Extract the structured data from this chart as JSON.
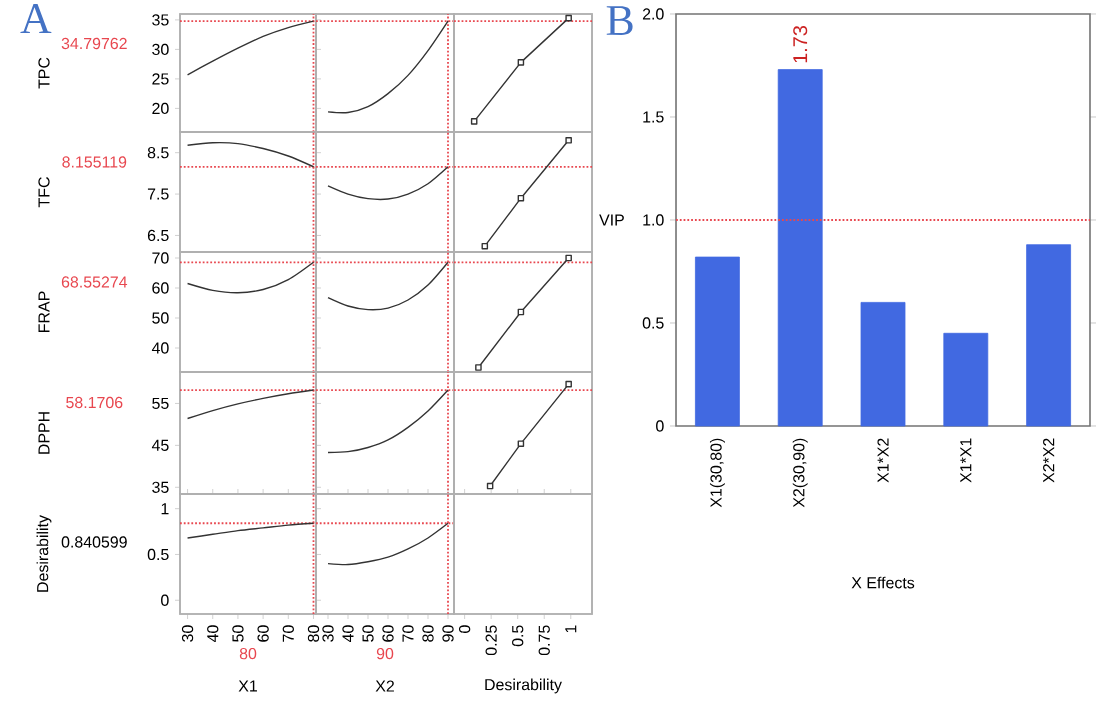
{
  "chart_data": [
    {
      "type": "line",
      "title": "A",
      "ylabel": "TPC",
      "x": [
        30,
        40,
        50,
        60,
        70,
        80
      ],
      "xlim": [
        27,
        81
      ],
      "ylim": [
        16,
        36
      ],
      "yticks": [
        20,
        25,
        30,
        35
      ],
      "tick_labels": "y",
      "series": [
        {
          "color": "#333333",
          "values": [
            25.7,
            28,
            30.2,
            32.2,
            33.7,
            34.8
          ]
        }
      ],
      "ref_lines": [
        {
          "axis": "y",
          "value": 34.79762,
          "label": "34.79762",
          "color": "#e8474f",
          "line_style": "dotted"
        },
        {
          "axis": "x",
          "value": 80,
          "color": "#e8474f",
          "line_style": "dotted"
        }
      ]
    },
    {
      "type": "line",
      "x": [
        30,
        40,
        50,
        60,
        70,
        80,
        90
      ],
      "xlim": [
        24,
        93
      ],
      "ylim": [
        16,
        36
      ],
      "tick_labels": false,
      "series": [
        {
          "color": "#333333",
          "values": [
            19.4,
            19.3,
            20.3,
            22.5,
            25.6,
            29.8,
            34.8
          ]
        }
      ],
      "ref_lines": [
        {
          "axis": "y",
          "value": 34.79762,
          "color": "#e8474f",
          "line_style": "dotted"
        },
        {
          "axis": "x",
          "value": 90,
          "color": "#e8474f",
          "line_style": "dotted"
        }
      ]
    },
    {
      "type": "line",
      "x": [
        0.09,
        0.53,
        0.98
      ],
      "xlim": [
        -0.1,
        1.2
      ],
      "ylim": [
        16,
        36
      ],
      "tick_labels": false,
      "marker": "square",
      "series": [
        {
          "color": "#333333",
          "values": [
            17.8,
            27.8,
            35.3
          ]
        }
      ],
      "ref_lines": [
        {
          "axis": "y",
          "value": 34.79762,
          "color": "#e8474f",
          "line_style": "dotted"
        }
      ]
    },
    {
      "type": "line",
      "ylabel": "TFC",
      "x": [
        30,
        40,
        50,
        60,
        70,
        80
      ],
      "xlim": [
        27,
        81
      ],
      "ylim": [
        6.1,
        9.0
      ],
      "yticks": [
        6.5,
        7.5,
        8.5
      ],
      "tick_labels": "y",
      "series": [
        {
          "color": "#333333",
          "values": [
            8.68,
            8.74,
            8.72,
            8.6,
            8.42,
            8.16
          ]
        }
      ],
      "ref_lines": [
        {
          "axis": "y",
          "value": 8.155119,
          "label": "8.155119",
          "color": "#e8474f",
          "line_style": "dotted"
        },
        {
          "axis": "x",
          "value": 80,
          "color": "#e8474f",
          "line_style": "dotted"
        }
      ]
    },
    {
      "type": "line",
      "x": [
        30,
        40,
        50,
        60,
        70,
        80,
        90
      ],
      "xlim": [
        24,
        93
      ],
      "ylim": [
        6.1,
        9.0
      ],
      "tick_labels": false,
      "series": [
        {
          "color": "#333333",
          "values": [
            7.7,
            7.5,
            7.39,
            7.38,
            7.5,
            7.75,
            8.16
          ]
        }
      ],
      "ref_lines": [
        {
          "axis": "y",
          "value": 8.155119,
          "color": "#e8474f",
          "line_style": "dotted"
        },
        {
          "axis": "x",
          "value": 90,
          "color": "#e8474f",
          "line_style": "dotted"
        }
      ]
    },
    {
      "type": "line",
      "x": [
        0.19,
        0.53,
        0.98
      ],
      "xlim": [
        -0.1,
        1.2
      ],
      "ylim": [
        6.1,
        9.0
      ],
      "tick_labels": false,
      "marker": "square",
      "series": [
        {
          "color": "#333333",
          "values": [
            6.24,
            7.4,
            8.8
          ]
        }
      ],
      "ref_lines": [
        {
          "axis": "y",
          "value": 8.155119,
          "color": "#e8474f",
          "line_style": "dotted"
        }
      ]
    },
    {
      "type": "line",
      "ylabel": "FRAP",
      "x": [
        30,
        40,
        50,
        60,
        70,
        80
      ],
      "xlim": [
        27,
        81
      ],
      "ylim": [
        32,
        72
      ],
      "yticks": [
        40,
        50,
        60,
        70
      ],
      "tick_labels": "y",
      "series": [
        {
          "color": "#333333",
          "values": [
            61.5,
            59.2,
            58.4,
            59.5,
            62.8,
            68.6
          ]
        }
      ],
      "ref_lines": [
        {
          "axis": "y",
          "value": 68.55274,
          "label": "68.55274",
          "color": "#e8474f",
          "line_style": "dotted"
        },
        {
          "axis": "x",
          "value": 80,
          "color": "#e8474f",
          "line_style": "dotted"
        }
      ]
    },
    {
      "type": "line",
      "x": [
        30,
        40,
        50,
        60,
        70,
        80,
        90
      ],
      "xlim": [
        24,
        93
      ],
      "ylim": [
        32,
        72
      ],
      "tick_labels": false,
      "series": [
        {
          "color": "#333333",
          "values": [
            56.8,
            54,
            52.8,
            53.3,
            56,
            61,
            68.6
          ]
        }
      ],
      "ref_lines": [
        {
          "axis": "y",
          "value": 68.55274,
          "color": "#e8474f",
          "line_style": "dotted"
        },
        {
          "axis": "x",
          "value": 90,
          "color": "#e8474f",
          "line_style": "dotted"
        }
      ]
    },
    {
      "type": "line",
      "x": [
        0.13,
        0.53,
        0.98
      ],
      "xlim": [
        -0.1,
        1.2
      ],
      "ylim": [
        32,
        72
      ],
      "tick_labels": false,
      "marker": "square",
      "series": [
        {
          "color": "#333333",
          "values": [
            33.5,
            52,
            70
          ]
        }
      ],
      "ref_lines": [
        {
          "axis": "y",
          "value": 68.55274,
          "color": "#e8474f",
          "line_style": "dotted"
        }
      ]
    },
    {
      "type": "line",
      "ylabel": "DPPH",
      "x": [
        30,
        40,
        50,
        60,
        70,
        80
      ],
      "xlim": [
        27,
        81
      ],
      "ylim": [
        33.4,
        62.5
      ],
      "yticks": [
        35,
        45,
        55
      ],
      "tick_labels": "y",
      "series": [
        {
          "color": "#333333",
          "values": [
            51.4,
            53.3,
            54.9,
            56.2,
            57.3,
            58.2
          ]
        }
      ],
      "ref_lines": [
        {
          "axis": "y",
          "value": 58.1706,
          "label": "58.1706",
          "color": "#e8474f",
          "line_style": "dotted"
        },
        {
          "axis": "x",
          "value": 80,
          "color": "#e8474f",
          "line_style": "dotted"
        }
      ]
    },
    {
      "type": "line",
      "x": [
        30,
        40,
        50,
        60,
        70,
        80,
        90
      ],
      "xlim": [
        24,
        93
      ],
      "ylim": [
        33.4,
        62.5
      ],
      "tick_labels": false,
      "series": [
        {
          "color": "#333333",
          "values": [
            43.3,
            43.5,
            44.5,
            46.3,
            49.3,
            53.2,
            58.2
          ]
        }
      ],
      "ref_lines": [
        {
          "axis": "y",
          "value": 58.1706,
          "color": "#e8474f",
          "line_style": "dotted"
        },
        {
          "axis": "x",
          "value": 90,
          "color": "#e8474f",
          "line_style": "dotted"
        }
      ]
    },
    {
      "type": "line",
      "x": [
        0.24,
        0.53,
        0.98
      ],
      "xlim": [
        -0.1,
        1.2
      ],
      "ylim": [
        33.4,
        62.5
      ],
      "tick_labels": false,
      "marker": "square",
      "series": [
        {
          "color": "#333333",
          "values": [
            35.3,
            45.4,
            59.6
          ]
        }
      ],
      "ref_lines": [
        {
          "axis": "y",
          "value": 58.1706,
          "color": "#e8474f",
          "line_style": "dotted"
        }
      ]
    },
    {
      "type": "line",
      "ylabel": "Desirability",
      "xlabel": "X1",
      "annotations": [
        "0.840599"
      ],
      "x": [
        30,
        40,
        50,
        60,
        70,
        80
      ],
      "xlim": [
        27,
        81
      ],
      "ylim": [
        -0.15,
        1.16
      ],
      "xticks": [
        30,
        40,
        50,
        60,
        70,
        80
      ],
      "yticks": [
        0,
        0.5,
        1
      ],
      "series": [
        {
          "color": "#333333",
          "values": [
            0.68,
            0.72,
            0.76,
            0.79,
            0.82,
            0.84
          ]
        }
      ],
      "ref_lines": [
        {
          "axis": "y",
          "value": 0.840599,
          "color": "#e8474f",
          "line_style": "dotted"
        },
        {
          "axis": "x",
          "value": 80,
          "label": "80",
          "color": "#e8474f",
          "line_style": "dotted"
        }
      ]
    },
    {
      "type": "line",
      "xlabel": "X2",
      "x": [
        30,
        40,
        50,
        60,
        70,
        80,
        90
      ],
      "xlim": [
        24,
        93
      ],
      "ylim": [
        -0.15,
        1.16
      ],
      "xticks": [
        30,
        40,
        50,
        60,
        70,
        80,
        90
      ],
      "tick_labels": "x",
      "series": [
        {
          "color": "#333333",
          "values": [
            0.4,
            0.39,
            0.42,
            0.47,
            0.56,
            0.68,
            0.84
          ]
        }
      ],
      "ref_lines": [
        {
          "axis": "y",
          "value": 0.840599,
          "color": "#e8474f",
          "line_style": "dotted"
        },
        {
          "axis": "x",
          "value": 90,
          "label": "90",
          "color": "#e8474f",
          "line_style": "dotted"
        }
      ]
    },
    {
      "type": "line",
      "xlabel": "Desirability",
      "xlim": [
        -0.1,
        1.2
      ],
      "ylim": [
        -0.15,
        1.16
      ],
      "xticks": [
        0,
        0.25,
        0.5,
        0.75,
        1
      ],
      "tick_labels": "x"
    },
    {
      "type": "bar",
      "title": "B",
      "xlabel": "X Effects",
      "ylabel": "VIP",
      "categories": [
        "X1(30,80)",
        "X2(30,90)",
        "X1*X2",
        "X1*X1",
        "X2*X2"
      ],
      "values": [
        0.82,
        1.73,
        0.6,
        0.45,
        0.88
      ],
      "value_labels": [
        null,
        "1.73",
        null,
        null,
        null
      ],
      "color": "#4169e1",
      "ylim": [
        0,
        2
      ],
      "yticks": [
        0,
        0.5,
        {
          "value": 1,
          "label": "1.0"
        },
        1.5,
        {
          "value": 2,
          "label": "2.0"
        }
      ],
      "ref_lines": [
        {
          "axis": "y",
          "value": 1,
          "color": "#e8474f",
          "line_style": "dotted"
        }
      ]
    }
  ]
}
